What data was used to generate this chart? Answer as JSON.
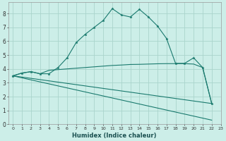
{
  "xlabel": "Humidex (Indice chaleur)",
  "background_color": "#cceee8",
  "grid_color": "#aad4cc",
  "line_color": "#1a7a6e",
  "xlim": [
    -0.5,
    23
  ],
  "ylim": [
    0,
    8.8
  ],
  "yticks": [
    0,
    1,
    2,
    3,
    4,
    5,
    6,
    7,
    8
  ],
  "xticks": [
    0,
    1,
    2,
    3,
    4,
    5,
    6,
    7,
    8,
    9,
    10,
    11,
    12,
    13,
    14,
    15,
    16,
    17,
    18,
    19,
    20,
    21,
    22,
    23
  ],
  "series1_x": [
    0,
    1,
    2,
    3,
    4,
    5,
    6,
    7,
    8,
    9,
    10,
    11,
    12,
    13,
    14,
    15,
    16,
    17,
    18,
    19,
    20,
    21,
    22
  ],
  "series1_y": [
    3.5,
    3.7,
    3.8,
    3.65,
    3.65,
    4.1,
    4.8,
    5.9,
    6.5,
    7.0,
    7.5,
    8.35,
    7.9,
    7.75,
    8.3,
    7.75,
    7.1,
    6.2,
    4.4,
    4.4,
    4.8,
    4.1,
    1.5
  ],
  "series2_x": [
    0,
    1,
    2,
    3,
    4,
    5,
    6,
    7,
    8,
    9,
    10,
    11,
    12,
    13,
    14,
    15,
    16,
    17,
    18,
    19,
    20,
    21,
    22
  ],
  "series2_y": [
    3.5,
    3.7,
    3.8,
    3.65,
    3.9,
    3.95,
    4.0,
    4.05,
    4.1,
    4.15,
    4.2,
    4.25,
    4.28,
    4.32,
    4.33,
    4.35,
    4.37,
    4.38,
    4.38,
    4.38,
    4.35,
    4.1,
    1.5
  ],
  "series3_x": [
    0,
    22
  ],
  "series3_y": [
    3.5,
    0.3
  ],
  "series4_x": [
    0,
    22
  ],
  "series4_y": [
    3.5,
    1.5
  ]
}
